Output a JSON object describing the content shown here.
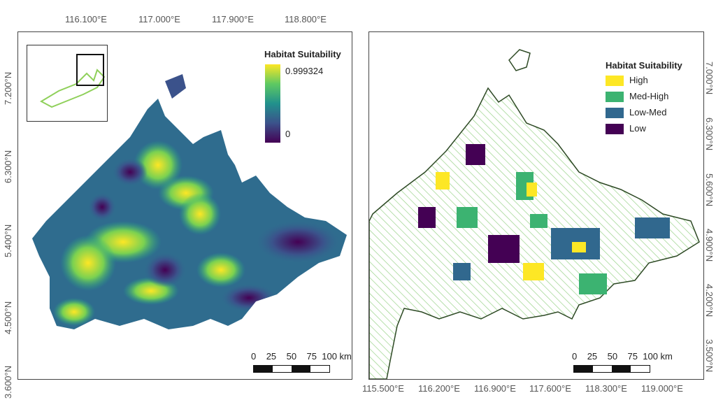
{
  "left_map": {
    "top_axis_ticks": [
      "116.100°E",
      "117.000°E",
      "117.900°E",
      "118.800°E"
    ],
    "left_axis_ticks": [
      "7.200°N",
      "6.300°N",
      "5.400°N",
      "4.500°N",
      "3.600°N"
    ],
    "legend": {
      "title": "Habitat Suitability",
      "max": "0.999324",
      "min": "0",
      "gradient_colors": [
        "#fde725",
        "#5ec962",
        "#21918c",
        "#3b528b",
        "#440154"
      ]
    },
    "scalebar": {
      "labels": [
        "0",
        "25",
        "50",
        "75",
        "100 km"
      ]
    }
  },
  "right_map": {
    "bottom_axis_ticks": [
      "115.500°E",
      "116.200°E",
      "116.900°E",
      "117.600°E",
      "118.300°E",
      "119.000°E"
    ],
    "right_axis_ticks": [
      "7.000°N",
      "6.300°N",
      "5.600°N",
      "4.900°N",
      "4.200°N",
      "3.500°N"
    ],
    "legend": {
      "title": "Habitat Suitability",
      "classes": [
        {
          "label": "High",
          "color": "#fde725"
        },
        {
          "label": "Med-High",
          "color": "#3cb371"
        },
        {
          "label": "Low-Med",
          "color": "#31688e"
        },
        {
          "label": "Low",
          "color": "#440154"
        }
      ]
    },
    "scalebar": {
      "labels": [
        "0",
        "25",
        "50",
        "75",
        "100 km"
      ]
    }
  }
}
